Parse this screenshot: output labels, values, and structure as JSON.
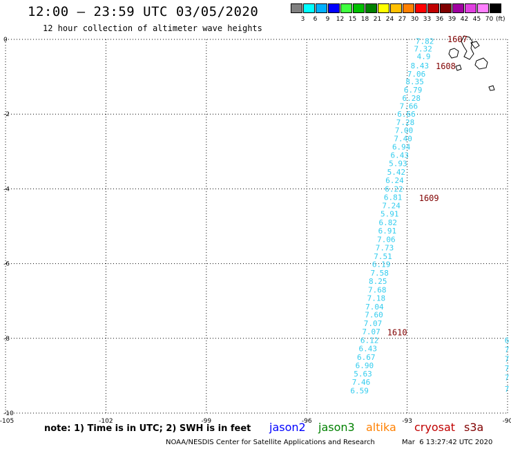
{
  "title": "12:00 – 23:59 UTC 03/05/2020",
  "subtitle": "12 hour collection of altimeter wave heights",
  "legend": {
    "colors": [
      "#808080",
      "#00ffff",
      "#00b0ff",
      "#0000ff",
      "#40ff40",
      "#00c000",
      "#008000",
      "#ffff00",
      "#ffc000",
      "#ff8000",
      "#ff0000",
      "#c00000",
      "#800000",
      "#a000a0",
      "#e040e0",
      "#ff80ff",
      "#000000"
    ],
    "labels": [
      "3",
      "6",
      "9",
      "12",
      "15",
      "18",
      "21",
      "24",
      "27",
      "30",
      "33",
      "36",
      "39",
      "42",
      "45",
      "70"
    ],
    "unit": "(ft)"
  },
  "axes": {
    "x_ticks": [
      "-105",
      "-102",
      "-99",
      "-96",
      "-93",
      "-90"
    ],
    "y_ticks": [
      "0",
      "-2",
      "-4",
      "-6",
      "-8",
      "-10"
    ],
    "lon_range": [
      -105,
      -90
    ],
    "lat_range": [
      -10,
      0
    ]
  },
  "track": {
    "color": "#33ccee",
    "labels": [
      {
        "v": "7.82",
        "lon": -92.2,
        "lat": -0.05
      },
      {
        "v": "7.32",
        "lon": -92.25,
        "lat": -0.25
      },
      {
        "v": "4.9",
        "lon": -92.3,
        "lat": -0.45
      },
      {
        "v": "8.43",
        "lon": -92.35,
        "lat": -0.7
      },
      {
        "v": "7.06",
        "lon": -92.45,
        "lat": -0.92
      },
      {
        "v": "8.35",
        "lon": -92.5,
        "lat": -1.13
      },
      {
        "v": "6.79",
        "lon": -92.55,
        "lat": -1.35
      },
      {
        "v": "6.28",
        "lon": -92.6,
        "lat": -1.57
      },
      {
        "v": "7.66",
        "lon": -92.68,
        "lat": -1.78
      },
      {
        "v": "6.66",
        "lon": -92.75,
        "lat": -2.0
      },
      {
        "v": "7.28",
        "lon": -92.78,
        "lat": -2.22
      },
      {
        "v": "7.00",
        "lon": -92.82,
        "lat": -2.43
      },
      {
        "v": "7.40",
        "lon": -92.85,
        "lat": -2.65
      },
      {
        "v": "6.94",
        "lon": -92.9,
        "lat": -2.87
      },
      {
        "v": "6.43",
        "lon": -92.95,
        "lat": -3.1
      },
      {
        "v": "5.93",
        "lon": -93.0,
        "lat": -3.32
      },
      {
        "v": "5.42",
        "lon": -93.05,
        "lat": -3.55
      },
      {
        "v": "6.24",
        "lon": -93.1,
        "lat": -3.77
      },
      {
        "v": "6.22",
        "lon": -93.12,
        "lat": -4.0
      },
      {
        "v": "6.81",
        "lon": -93.15,
        "lat": -4.22
      },
      {
        "v": "7.24",
        "lon": -93.2,
        "lat": -4.45
      },
      {
        "v": "5.91",
        "lon": -93.25,
        "lat": -4.67
      },
      {
        "v": "6.82",
        "lon": -93.3,
        "lat": -4.9
      },
      {
        "v": "6.91",
        "lon": -93.32,
        "lat": -5.12
      },
      {
        "v": "7.06",
        "lon": -93.35,
        "lat": -5.35
      },
      {
        "v": "7.73",
        "lon": -93.4,
        "lat": -5.57
      },
      {
        "v": "7.51",
        "lon": -93.45,
        "lat": -5.8
      },
      {
        "v": "6.19",
        "lon": -93.5,
        "lat": -6.02
      },
      {
        "v": "7.58",
        "lon": -93.55,
        "lat": -6.25
      },
      {
        "v": "8.25",
        "lon": -93.6,
        "lat": -6.47
      },
      {
        "v": "7.68",
        "lon": -93.62,
        "lat": -6.7
      },
      {
        "v": "7.18",
        "lon": -93.65,
        "lat": -6.92
      },
      {
        "v": "7.04",
        "lon": -93.7,
        "lat": -7.15
      },
      {
        "v": "7.60",
        "lon": -93.72,
        "lat": -7.37
      },
      {
        "v": "7.07",
        "lon": -93.75,
        "lat": -7.6
      },
      {
        "v": "7.07",
        "lon": -93.8,
        "lat": -7.82
      },
      {
        "v": "6.12",
        "lon": -93.85,
        "lat": -8.05
      },
      {
        "v": "6.43",
        "lon": -93.9,
        "lat": -8.27
      },
      {
        "v": "6.67",
        "lon": -93.95,
        "lat": -8.5
      },
      {
        "v": "6.90",
        "lon": -94.0,
        "lat": -8.72
      },
      {
        "v": "5.63",
        "lon": -94.05,
        "lat": -8.95
      },
      {
        "v": "7.46",
        "lon": -94.1,
        "lat": -9.17
      },
      {
        "v": "6.59",
        "lon": -94.15,
        "lat": -9.4
      }
    ],
    "edge_labels": [
      {
        "v": "6",
        "lon": -89.95,
        "lat": -8.05
      },
      {
        "v": "7",
        "lon": -89.95,
        "lat": -8.3
      },
      {
        "v": "7",
        "lon": -89.95,
        "lat": -8.55
      },
      {
        "v": "7",
        "lon": -89.95,
        "lat": -8.8
      },
      {
        "v": "7",
        "lon": -89.95,
        "lat": -9.05
      },
      {
        "v": "7",
        "lon": -89.95,
        "lat": -9.35
      }
    ]
  },
  "time_labels": {
    "color": "#800000",
    "items": [
      {
        "v": "1607",
        "lon": -91.2,
        "lat": 0.0
      },
      {
        "v": "1608",
        "lon": -91.55,
        "lat": -0.72
      },
      {
        "v": "1609",
        "lon": -92.05,
        "lat": -4.25
      },
      {
        "v": "1610",
        "lon": -93.0,
        "lat": -7.85
      }
    ]
  },
  "note": "note: 1) Time is in UTC; 2) SWH is in feet",
  "satellites": [
    {
      "name": "jason2",
      "color": "#0000ff"
    },
    {
      "name": "jason3",
      "color": "#008000"
    },
    {
      "name": "altika",
      "color": "#ff8000"
    },
    {
      "name": "cryosat",
      "color": "#c00000"
    },
    {
      "name": "s3a",
      "color": "#800000"
    }
  ],
  "footer": "NOAA/NESDIS Center for Satellite Applications and Research",
  "timestamp": "Mar  6 13:27:42 UTC 2020"
}
